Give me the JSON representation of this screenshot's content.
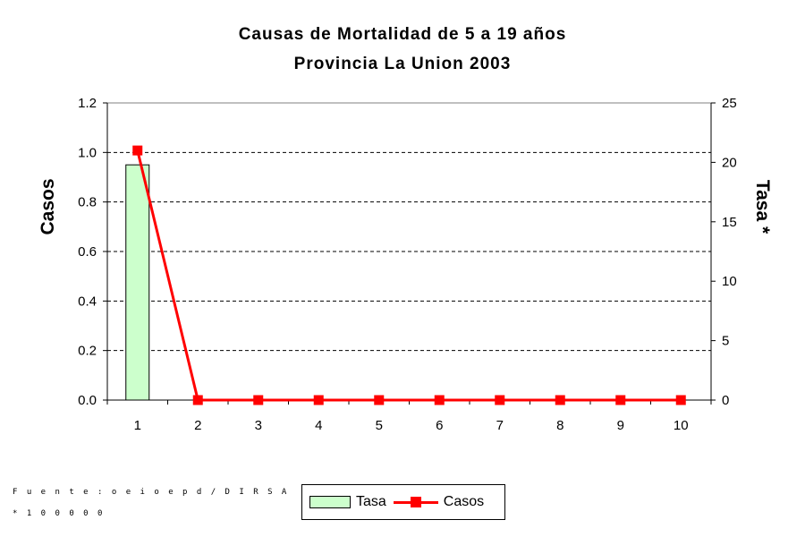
{
  "chart_data": {
    "type": "bar+line",
    "title": "Causas de Mortalidad de 5 a 19 años",
    "subtitle": "Provincia La Union 2003",
    "categories": [
      "1",
      "2",
      "3",
      "4",
      "5",
      "6",
      "7",
      "8",
      "9",
      "10"
    ],
    "ylabel_left": "Casos",
    "ylabel_right": "Tasa *",
    "ylim_left": [
      0,
      1.2
    ],
    "ylim_right": [
      0,
      25
    ],
    "yticks_left": [
      "0.0",
      "0.2",
      "0.4",
      "0.6",
      "0.8",
      "1.0",
      "1.2"
    ],
    "yticks_right": [
      "0",
      "5",
      "10",
      "15",
      "20",
      "25"
    ],
    "grid": "horizontal dashed",
    "series": [
      {
        "name": "Tasa",
        "kind": "bar",
        "axis": "left",
        "color": "#ccffcc",
        "values": [
          0.95,
          0,
          0,
          0,
          0,
          0,
          0,
          0,
          0,
          0
        ]
      },
      {
        "name": "Casos",
        "kind": "line",
        "axis": "right",
        "color": "#ff0000",
        "values": [
          21,
          0,
          0,
          0,
          0,
          0,
          0,
          0,
          0,
          0
        ]
      }
    ],
    "legend": {
      "position": "bottom",
      "items": [
        "Tasa",
        "Casos"
      ]
    }
  },
  "footnotes": {
    "source": "F u e n t e : o e i o e p d / D I R S A",
    "rate": "* 1 0 0 0 0 0"
  }
}
